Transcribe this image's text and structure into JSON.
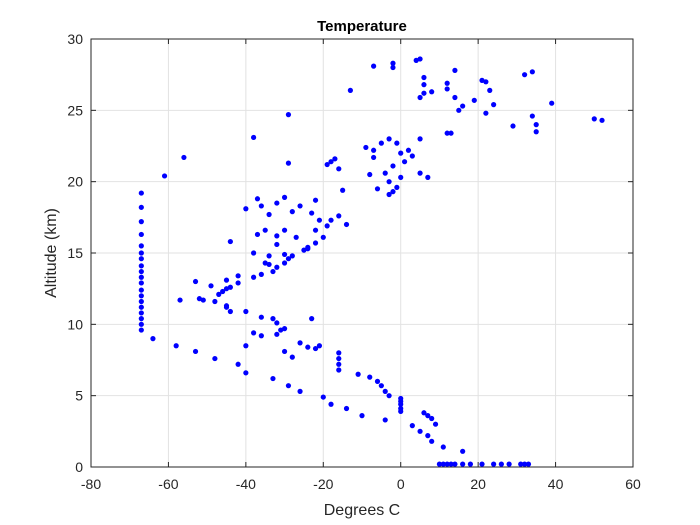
{
  "chart_data": {
    "type": "scatter",
    "title": "Temperature",
    "xlabel": "Degrees C",
    "ylabel": "Altitude (km)",
    "xlim": [
      -80,
      60
    ],
    "ylim": [
      0,
      30
    ],
    "xticks": [
      -80,
      -60,
      -40,
      -20,
      0,
      20,
      40,
      60
    ],
    "yticks": [
      0,
      5,
      10,
      15,
      20,
      25,
      30
    ],
    "grid": true,
    "marker_color": "#0000ff",
    "points": [
      [
        10,
        0.2
      ],
      [
        11,
        0.2
      ],
      [
        12,
        0.2
      ],
      [
        13,
        0.2
      ],
      [
        14,
        0.2
      ],
      [
        16,
        0.2
      ],
      [
        18,
        0.2
      ],
      [
        21,
        0.2
      ],
      [
        24,
        0.2
      ],
      [
        26,
        0.2
      ],
      [
        28,
        0.2
      ],
      [
        31,
        0.2
      ],
      [
        32,
        0.2
      ],
      [
        33,
        0.2
      ],
      [
        16,
        1.1
      ],
      [
        11,
        1.4
      ],
      [
        8,
        1.8
      ],
      [
        7,
        2.2
      ],
      [
        5,
        2.5
      ],
      [
        3,
        2.9
      ],
      [
        -4,
        3.3
      ],
      [
        9,
        3.0
      ],
      [
        8,
        3.4
      ],
      [
        7,
        3.6
      ],
      [
        6,
        3.8
      ],
      [
        -10,
        3.6
      ],
      [
        -14,
        4.1
      ],
      [
        -18,
        4.4
      ],
      [
        0,
        3.9
      ],
      [
        0,
        4.1
      ],
      [
        0,
        4.4
      ],
      [
        0,
        4.6
      ],
      [
        0,
        4.8
      ],
      [
        -3,
        5.0
      ],
      [
        -4,
        5.3
      ],
      [
        -5,
        5.7
      ],
      [
        -6,
        6.0
      ],
      [
        -8,
        6.3
      ],
      [
        -11,
        6.5
      ],
      [
        -20,
        4.9
      ],
      [
        -26,
        5.3
      ],
      [
        -29,
        5.7
      ],
      [
        -33,
        6.2
      ],
      [
        -16,
        6.8
      ],
      [
        -16,
        7.2
      ],
      [
        -16,
        7.6
      ],
      [
        -16,
        8.0
      ],
      [
        -40,
        6.6
      ],
      [
        -42,
        7.2
      ],
      [
        -48,
        7.6
      ],
      [
        -53,
        8.1
      ],
      [
        -58,
        8.5
      ],
      [
        -64,
        9.0
      ],
      [
        -30,
        8.1
      ],
      [
        -28,
        7.7
      ],
      [
        -24,
        8.4
      ],
      [
        -22,
        8.3
      ],
      [
        -26,
        8.7
      ],
      [
        -21,
        8.5
      ],
      [
        -40,
        8.5
      ],
      [
        -38,
        9.4
      ],
      [
        -36,
        9.2
      ],
      [
        -32,
        9.3
      ],
      [
        -31,
        9.6
      ],
      [
        -30,
        9.7
      ],
      [
        -33,
        10.4
      ],
      [
        -32,
        10.1
      ],
      [
        -36,
        10.5
      ],
      [
        -40,
        10.9
      ],
      [
        -45,
        11.3
      ],
      [
        -48,
        11.6
      ],
      [
        -52,
        11.8
      ],
      [
        -57,
        11.7
      ],
      [
        -23,
        10.4
      ],
      [
        -67,
        9.6
      ],
      [
        -67,
        10.0
      ],
      [
        -67,
        10.4
      ],
      [
        -67,
        10.8
      ],
      [
        -67,
        11.2
      ],
      [
        -67,
        11.6
      ],
      [
        -67,
        12.0
      ],
      [
        -67,
        12.4
      ],
      [
        -67,
        12.9
      ],
      [
        -67,
        13.3
      ],
      [
        -67,
        13.7
      ],
      [
        -67,
        14.1
      ],
      [
        -67,
        14.6
      ],
      [
        -67,
        15.0
      ],
      [
        -67,
        15.5
      ],
      [
        -67,
        16.3
      ],
      [
        -67,
        17.2
      ],
      [
        -67,
        18.2
      ],
      [
        -67,
        19.2
      ],
      [
        -44,
        10.9
      ],
      [
        -45,
        11.2
      ],
      [
        -47,
        12.1
      ],
      [
        -49,
        12.7
      ],
      [
        -51,
        11.7
      ],
      [
        -53,
        13.0
      ],
      [
        -46,
        12.3
      ],
      [
        -45,
        12.5
      ],
      [
        -44,
        12.6
      ],
      [
        -42,
        12.9
      ],
      [
        -42,
        13.4
      ],
      [
        -38,
        13.3
      ],
      [
        -45,
        13.1
      ],
      [
        -36,
        13.5
      ],
      [
        -33,
        13.7
      ],
      [
        -32,
        14.0
      ],
      [
        -30,
        14.3
      ],
      [
        -29,
        14.6
      ],
      [
        -30,
        14.9
      ],
      [
        -28,
        14.8
      ],
      [
        -25,
        15.2
      ],
      [
        -24,
        15.3
      ],
      [
        -22,
        15.7
      ],
      [
        -20,
        16.1
      ],
      [
        -34,
        14.8
      ],
      [
        -34,
        14.2
      ],
      [
        -35,
        14.3
      ],
      [
        -38,
        15.0
      ],
      [
        -37,
        16.3
      ],
      [
        -35,
        16.6
      ],
      [
        -32,
        16.2
      ],
      [
        -32,
        15.6
      ],
      [
        -27,
        16.1
      ],
      [
        -30,
        16.6
      ],
      [
        -24,
        15.4
      ],
      [
        -44,
        15.8
      ],
      [
        -36,
        18.3
      ],
      [
        -37,
        18.8
      ],
      [
        -34,
        17.7
      ],
      [
        -32,
        18.5
      ],
      [
        -30,
        18.9
      ],
      [
        -28,
        17.9
      ],
      [
        -26,
        18.3
      ],
      [
        -23,
        17.8
      ],
      [
        -22,
        18.7
      ],
      [
        -21,
        17.3
      ],
      [
        -19,
        16.9
      ],
      [
        -18,
        17.3
      ],
      [
        -16,
        17.6
      ],
      [
        -14,
        17.0
      ],
      [
        -22,
        16.6
      ],
      [
        -40,
        18.1
      ],
      [
        -19,
        21.2
      ],
      [
        -18,
        21.4
      ],
      [
        -17,
        21.6
      ],
      [
        -16,
        20.9
      ],
      [
        -15,
        19.4
      ],
      [
        -9,
        22.4
      ],
      [
        -7,
        22.2
      ],
      [
        -5,
        22.7
      ],
      [
        -7,
        21.7
      ],
      [
        -8,
        20.5
      ],
      [
        -6,
        19.5
      ],
      [
        -4,
        20.6
      ],
      [
        -3,
        20.0
      ],
      [
        -2,
        19.3
      ],
      [
        -1,
        19.6
      ],
      [
        0,
        20.3
      ],
      [
        1,
        21.4
      ],
      [
        0,
        22.0
      ],
      [
        2,
        22.2
      ],
      [
        -3,
        23.0
      ],
      [
        -1,
        22.7
      ],
      [
        3,
        21.8
      ],
      [
        5,
        20.6
      ],
      [
        7,
        20.3
      ],
      [
        -3,
        19.1
      ],
      [
        -2,
        21.1
      ],
      [
        5,
        23.0
      ],
      [
        -29,
        21.3
      ],
      [
        -38,
        23.1
      ],
      [
        -29,
        24.7
      ],
      [
        -56,
        21.7
      ],
      [
        -61,
        20.4
      ],
      [
        -13,
        26.4
      ],
      [
        -7,
        28.1
      ],
      [
        -2,
        28.0
      ],
      [
        -2,
        28.3
      ],
      [
        4,
        28.5
      ],
      [
        5,
        28.6
      ],
      [
        5,
        25.9
      ],
      [
        6,
        26.2
      ],
      [
        6,
        26.8
      ],
      [
        6,
        27.3
      ],
      [
        8,
        26.3
      ],
      [
        12,
        26.5
      ],
      [
        12,
        26.9
      ],
      [
        14,
        27.8
      ],
      [
        14,
        25.9
      ],
      [
        15,
        25.0
      ],
      [
        16,
        25.3
      ],
      [
        19,
        25.7
      ],
      [
        21,
        27.1
      ],
      [
        22,
        27.0
      ],
      [
        23,
        26.4
      ],
      [
        22,
        24.8
      ],
      [
        24,
        25.4
      ],
      [
        12,
        23.4
      ],
      [
        13,
        23.4
      ],
      [
        29,
        23.9
      ],
      [
        32,
        27.5
      ],
      [
        34,
        27.7
      ],
      [
        34,
        24.6
      ],
      [
        35,
        24.0
      ],
      [
        35,
        23.5
      ],
      [
        39,
        25.5
      ],
      [
        50,
        24.4
      ],
      [
        52,
        24.3
      ]
    ]
  }
}
